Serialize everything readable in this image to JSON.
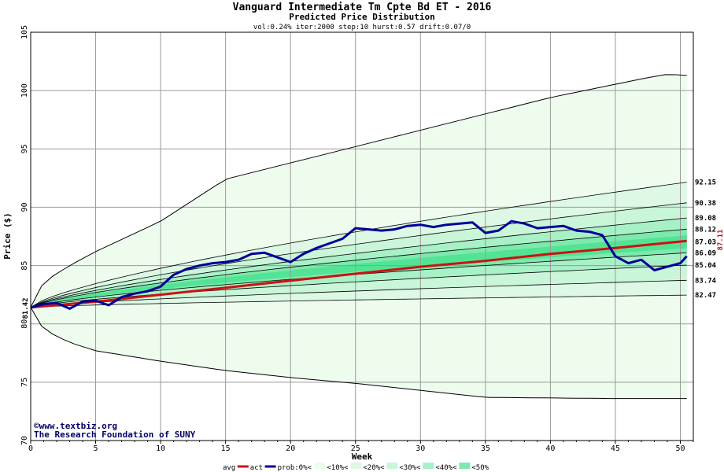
{
  "chart_data": {
    "type": "line",
    "title": "Vanguard Intermediate Tm Cpte Bd ET - 2016",
    "subtitle": "Predicted Price Distribution",
    "params": "vol:0.24% iter:2000 step:10 hurst:0.57 drift:0.07/0",
    "xlabel": "Week",
    "ylabel": "Price ($)",
    "xlim": [
      0,
      51
    ],
    "ylim": [
      70,
      105
    ],
    "x_ticks": [
      "0",
      "5",
      "10",
      "15",
      "20",
      "25",
      "30",
      "35",
      "40",
      "45",
      "50"
    ],
    "y_ticks": [
      "70",
      "75",
      "80",
      "85",
      "90",
      "95",
      "100",
      "105"
    ],
    "grid": true,
    "start_label": "81.42",
    "end_label": "87.11",
    "right_labels": [
      "92.15",
      "90.38",
      "89.08",
      "88.12",
      "87.03",
      "86.09",
      "85.04",
      "83.74",
      "82.47"
    ],
    "envelope": {
      "upper": [
        [
          0,
          81.42
        ],
        [
          1,
          83.6
        ],
        [
          3,
          85
        ],
        [
          5,
          86.2
        ],
        [
          10,
          88.8
        ],
        [
          15,
          92.4
        ],
        [
          20,
          93.8
        ],
        [
          30,
          96.6
        ],
        [
          40,
          99.4
        ],
        [
          47,
          101.0
        ],
        [
          49,
          101.4
        ],
        [
          50.5,
          101.3
        ]
      ],
      "lower": [
        [
          0,
          81.42
        ],
        [
          1,
          79.5
        ],
        [
          3,
          78.4
        ],
        [
          5,
          77.7
        ],
        [
          10,
          76.8
        ],
        [
          15,
          76.0
        ],
        [
          20,
          75.4
        ],
        [
          25,
          74.9
        ],
        [
          30,
          74.3
        ],
        [
          35,
          73.7
        ],
        [
          45,
          73.6
        ],
        [
          50.5,
          73.6
        ]
      ]
    },
    "band_edges": [
      92.15,
      90.38,
      89.08,
      88.12,
      87.03,
      86.09,
      85.04,
      83.74,
      82.47
    ],
    "avg": [
      [
        0,
        81.42
      ],
      [
        5,
        81.9
      ],
      [
        10,
        82.5
      ],
      [
        15,
        83.1
      ],
      [
        20,
        83.7
      ],
      [
        25,
        84.3
      ],
      [
        30,
        84.9
      ],
      [
        35,
        85.4
      ],
      [
        40,
        86.0
      ],
      [
        45,
        86.5
      ],
      [
        50.5,
        87.11
      ]
    ],
    "act": [
      [
        0,
        81.4
      ],
      [
        1,
        81.7
      ],
      [
        2,
        81.8
      ],
      [
        3,
        81.3
      ],
      [
        4,
        81.9
      ],
      [
        5,
        82.0
      ],
      [
        6,
        81.6
      ],
      [
        7,
        82.3
      ],
      [
        8,
        82.6
      ],
      [
        9,
        82.8
      ],
      [
        10,
        83.2
      ],
      [
        11,
        84.2
      ],
      [
        12,
        84.7
      ],
      [
        13,
        85.0
      ],
      [
        14,
        85.2
      ],
      [
        15,
        85.3
      ],
      [
        16,
        85.5
      ],
      [
        17,
        86.0
      ],
      [
        18,
        86.1
      ],
      [
        19,
        85.7
      ],
      [
        20,
        85.3
      ],
      [
        21,
        86.0
      ],
      [
        22,
        86.5
      ],
      [
        23,
        86.9
      ],
      [
        24,
        87.3
      ],
      [
        25,
        88.2
      ],
      [
        26,
        88.1
      ],
      [
        27,
        88.0
      ],
      [
        28,
        88.1
      ],
      [
        29,
        88.4
      ],
      [
        30,
        88.5
      ],
      [
        31,
        88.3
      ],
      [
        32,
        88.5
      ],
      [
        33,
        88.6
      ],
      [
        34,
        88.7
      ],
      [
        35,
        87.8
      ],
      [
        36,
        88.0
      ],
      [
        37,
        88.8
      ],
      [
        38,
        88.6
      ],
      [
        39,
        88.2
      ],
      [
        40,
        88.3
      ],
      [
        41,
        88.4
      ],
      [
        42,
        88.0
      ],
      [
        43,
        87.9
      ],
      [
        44,
        87.6
      ],
      [
        45,
        85.8
      ],
      [
        46,
        85.2
      ],
      [
        47,
        85.5
      ],
      [
        48,
        84.6
      ],
      [
        49,
        84.9
      ],
      [
        50,
        85.2
      ],
      [
        50.5,
        85.8
      ]
    ],
    "legend": [
      "avg",
      "act",
      "prob:0%<",
      "<10%<",
      "<20%<",
      "<30%<",
      "<40%<",
      "<50%"
    ],
    "colors": {
      "band0": "#eefcee",
      "band1": "#ddf8e4",
      "band2": "#c9f5d8",
      "band3": "#a8f0c6",
      "band4": "#7de9ac",
      "band5": "#52e394",
      "avg": "#cc1111",
      "act": "#000099",
      "end_label": "#cc1111",
      "grid": "#999999"
    }
  },
  "watermark": {
    "copyright": "©www.textbiz.org",
    "foundation": "The Research Foundation of SUNY"
  }
}
